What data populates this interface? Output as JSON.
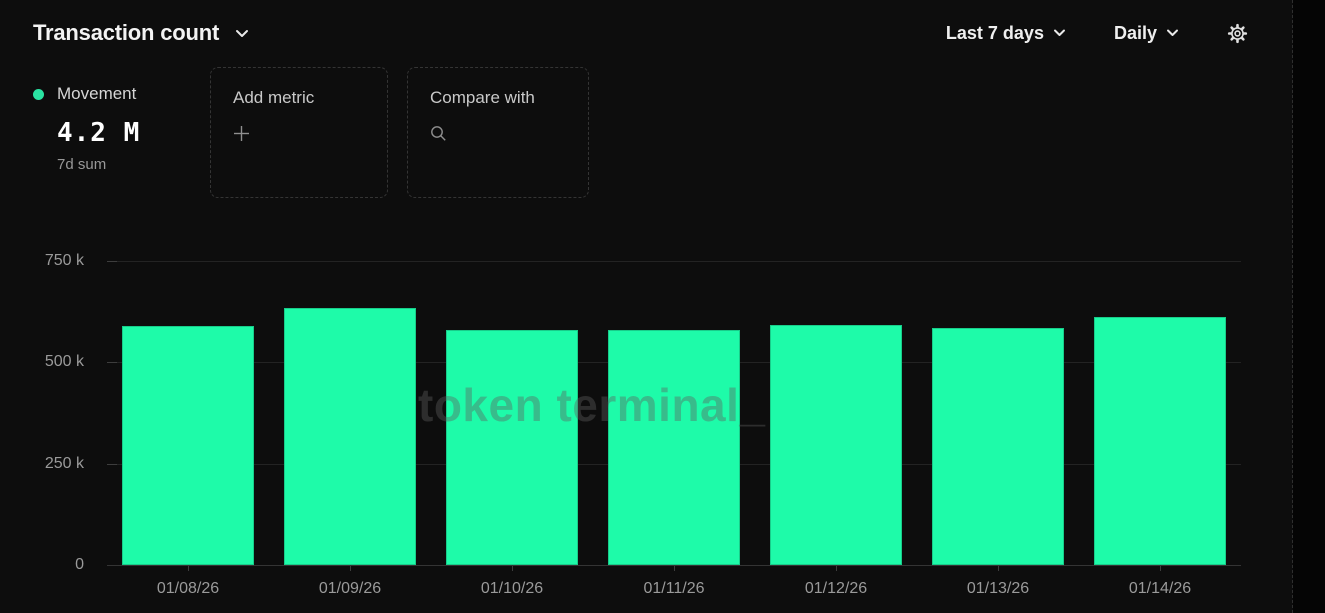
{
  "header": {
    "title": "Transaction count",
    "range_label": "Last 7 days",
    "interval_label": "Daily"
  },
  "icons": {
    "title_dropdown": "chevron-down-icon",
    "range_dropdown": "chevron-down-icon",
    "interval_dropdown": "chevron-down-icon",
    "settings": "gear-icon",
    "add_metric": "plus-icon",
    "compare_with": "search-icon"
  },
  "metric": {
    "name": "Movement",
    "value": "4.2 M",
    "subtitle": "7d sum",
    "dot_color": "#2ae3a2"
  },
  "add_metric": {
    "label": "Add metric"
  },
  "compare": {
    "label": "Compare with"
  },
  "watermark": "token terminal_",
  "colors": {
    "background": "#0d0d0d",
    "bar": "#1efba9",
    "grid": "#232323",
    "axis": "#343434",
    "axis_text": "#9a9a9a",
    "title_text": "#f4f4f4"
  },
  "chart_data": {
    "type": "bar",
    "title": "Transaction count",
    "series_name": "Movement",
    "categories": [
      "01/08/26",
      "01/09/26",
      "01/10/26",
      "01/11/26",
      "01/12/26",
      "01/13/26",
      "01/14/26"
    ],
    "values": [
      589000,
      634000,
      579000,
      580000,
      592000,
      585000,
      611000
    ],
    "total_label": "4.2 M",
    "xlabel": "",
    "ylabel": "",
    "ylim": [
      0,
      750000
    ],
    "ytick_values": [
      750000,
      500000,
      250000,
      0
    ],
    "ytick_labels": [
      "750 k",
      "500 k",
      "250 k",
      "0"
    ],
    "grid": "horizontal",
    "legend_position": "top-left",
    "bar_color": "#1efba9"
  }
}
